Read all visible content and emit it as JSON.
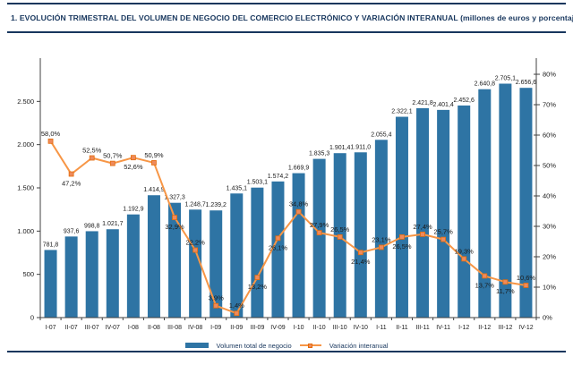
{
  "page": {
    "title": "1.  EVOLUCIÓN TRIMESTRAL DEL VOLUMEN DE NEGOCIO DEL COMERCIO ELECTRÓNICO Y VARIACIÓN INTERANUAL (millones de euros y porcentaje)"
  },
  "colors": {
    "navy": "#17365d",
    "bar_blue": "#2e74a4",
    "line_orange": "#f79646",
    "marker_fill": "#ee8a5c",
    "marker_stroke": "#e46c0a",
    "axis": "#404040",
    "text": "#1a1a1a"
  },
  "legend": {
    "bar_label": "Volumen total de negocio",
    "line_label": "Variación interanual"
  },
  "chart_data": {
    "type": "bar",
    "subtype": "bar+line-combo",
    "title": "Evolución trimestral del volumen de negocio del comercio electrónico y variación interanual",
    "xlabel": "",
    "ylabel_left": "millones de euros",
    "ylabel_right": "porcentaje",
    "grid": false,
    "legend_position": "bottom",
    "categories": [
      "I-07",
      "II-07",
      "III-07",
      "IV-07",
      "I-08",
      "II-08",
      "III-08",
      "IV-08",
      "I-09",
      "II-09",
      "III-09",
      "IV-09",
      "I-10",
      "II-10",
      "III-10",
      "IV-10",
      "I-11",
      "II-11",
      "III-11",
      "IV-11",
      "I-12",
      "II-12",
      "III-12",
      "IV-12"
    ],
    "series": [
      {
        "name": "Volumen total de negocio",
        "type": "bar",
        "axis": "left",
        "values": [
          781.8,
          937.6,
          998.8,
          1021.7,
          1192.9,
          1414.9,
          1327.3,
          1248.7,
          1239.2,
          1435.1,
          1503.1,
          1574.2,
          1669.9,
          1835.3,
          1901.4,
          1911.0,
          2055.4,
          2322.1,
          2421.8,
          2401.4,
          2452.6,
          2640.8,
          2705.1,
          2656.6
        ],
        "labels": [
          "781,8",
          "937,6",
          "998,8",
          "1.021,7",
          "1.192,9",
          "1.414,9",
          "1.327,3",
          "1.248,7",
          "1.239,2",
          "1.435,1",
          "1.503,1",
          "1.574,2",
          "1.669,9",
          "1.835,3",
          "1.901,4",
          "1.911,0",
          "2.055,4",
          "2.322,1",
          "2.421,8",
          "2.401,4",
          "2.452,6",
          "2.640,8",
          "2.705,1",
          "2.656,6"
        ]
      },
      {
        "name": "Variación interanual",
        "type": "line",
        "axis": "right",
        "values": [
          58.0,
          47.2,
          52.5,
          50.7,
          52.6,
          50.9,
          32.9,
          22.2,
          3.9,
          1.4,
          13.2,
          26.1,
          34.8,
          27.9,
          26.5,
          21.4,
          23.1,
          26.5,
          27.4,
          25.7,
          19.3,
          13.7,
          11.7,
          10.6
        ],
        "labels": [
          "58,0%",
          "47,2%",
          "52,5%",
          "50,7%",
          "52,6%",
          "50,9%",
          "32,9%",
          "22,2%",
          "3,9%",
          "1,4%",
          "13,2%",
          "26,1%",
          "34,8%",
          "27,9%",
          "26,5%",
          "21,4%",
          "23,1%",
          "26,5%",
          "27,4%",
          "25,7%",
          "19,3%",
          "13,7%",
          "11,7%",
          "10,6%"
        ],
        "label_position": [
          "above",
          "below",
          "above",
          "above",
          "below",
          "above",
          "below",
          "above",
          "above",
          "above",
          "below",
          "below",
          "above",
          "above",
          "above",
          "below",
          "above",
          "below",
          "above",
          "above",
          "above",
          "below",
          "below",
          "above"
        ]
      }
    ],
    "left_axis": {
      "tick_labels": [
        "0",
        "500",
        "1.000",
        "1.500",
        "2.000",
        "2.500"
      ],
      "tick_values": [
        0,
        500,
        1000,
        1500,
        2000,
        2500
      ],
      "range": [
        0,
        3000
      ]
    },
    "right_axis": {
      "tick_labels": [
        "0%",
        "10%",
        "20%",
        "30%",
        "40%",
        "50%",
        "60%",
        "70%",
        "80%"
      ],
      "tick_values": [
        0,
        10,
        20,
        30,
        40,
        50,
        60,
        70,
        80
      ],
      "range": [
        0,
        85.3
      ]
    }
  }
}
